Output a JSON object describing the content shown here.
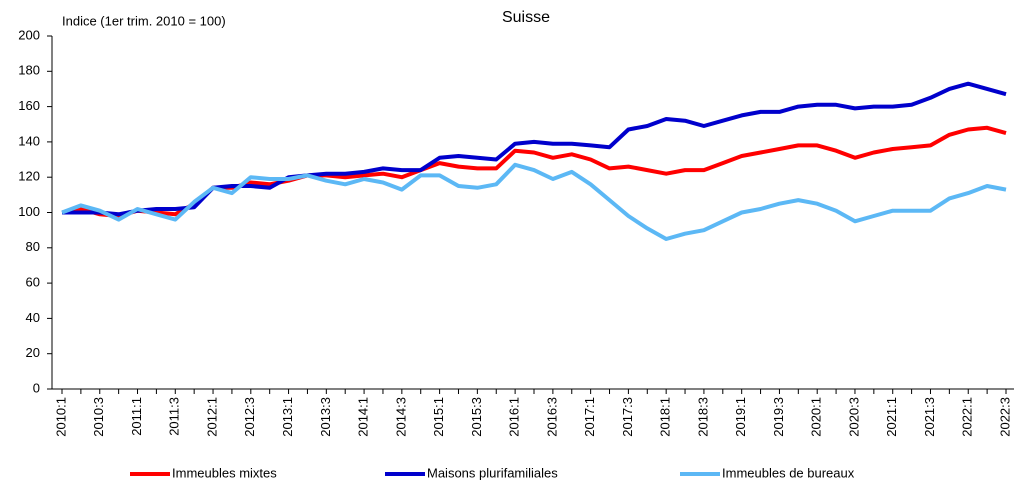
{
  "chart_data": {
    "type": "line",
    "title": "Suisse",
    "y_label": "Indice (1er trim. 2010 = 100)",
    "categories": [
      "2010:1",
      null,
      "2010:3",
      null,
      "2011:1",
      null,
      "2011:3",
      null,
      "2012:1",
      null,
      "2012:3",
      null,
      "2013:1",
      null,
      "2013:3",
      null,
      "2014:1",
      null,
      "2014:3",
      null,
      "2015:1",
      null,
      "2015:3",
      null,
      "2016:1",
      null,
      "2016:3",
      null,
      "2017:1",
      null,
      "2017:3",
      null,
      "2018:1",
      null,
      "2018:3",
      null,
      "2019:1",
      null,
      "2019:3",
      null,
      "2020:1",
      null,
      "2020:3",
      null,
      "2021:1",
      null,
      "2021:3",
      null,
      "2022:1",
      null,
      "2022:3"
    ],
    "series": [
      {
        "name": "Immeubles mixtes",
        "color": "#ff0000",
        "values": [
          100,
          102,
          99,
          98,
          101,
          100,
          99,
          105,
          114,
          114,
          117,
          116,
          118,
          121,
          121,
          120,
          121,
          122,
          120,
          124,
          128,
          126,
          125,
          125,
          135,
          134,
          131,
          133,
          130,
          125,
          126,
          124,
          122,
          124,
          124,
          128,
          132,
          134,
          136,
          138,
          138,
          135,
          131,
          134,
          136,
          137,
          138,
          144,
          147,
          148,
          145
        ]
      },
      {
        "name": "Maisons plurifamiliales",
        "color": "#0000cc",
        "values": [
          100,
          100,
          100,
          99,
          101,
          102,
          102,
          103,
          114,
          115,
          115,
          114,
          120,
          121,
          122,
          122,
          123,
          125,
          124,
          124,
          131,
          132,
          131,
          130,
          139,
          140,
          139,
          139,
          138,
          137,
          147,
          149,
          153,
          152,
          149,
          152,
          155,
          157,
          157,
          160,
          161,
          161,
          159,
          160,
          160,
          161,
          165,
          170,
          173,
          170,
          167
        ]
      },
      {
        "name": "Immeubles de bureaux",
        "color": "#5cb8f5",
        "values": [
          100,
          104,
          101,
          96,
          102,
          99,
          96,
          106,
          114,
          111,
          120,
          119,
          119,
          121,
          118,
          116,
          119,
          117,
          113,
          121,
          121,
          115,
          114,
          116,
          127,
          124,
          119,
          123,
          116,
          107,
          98,
          91,
          85,
          88,
          90,
          95,
          100,
          102,
          105,
          107,
          105,
          101,
          95,
          98,
          101,
          101,
          101,
          108,
          111,
          115,
          113
        ]
      }
    ],
    "ylim": [
      0,
      200
    ],
    "yticks": [
      0,
      20,
      40,
      60,
      80,
      100,
      120,
      140,
      160,
      180,
      200
    ],
    "grid": false
  }
}
